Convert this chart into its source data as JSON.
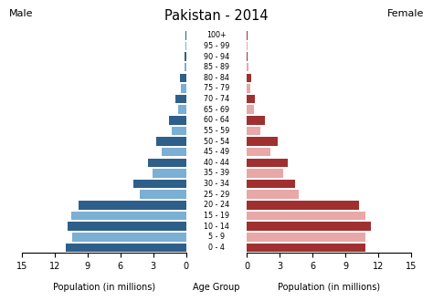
{
  "title": "Pakistan - 2014",
  "age_groups": [
    "0 - 4",
    "5 - 9",
    "10 - 14",
    "15 - 19",
    "20 - 24",
    "25 - 29",
    "30 - 34",
    "35 - 39",
    "40 - 44",
    "45 - 49",
    "50 - 54",
    "55 - 59",
    "60 - 64",
    "65 - 69",
    "70 - 74",
    "75 - 79",
    "80 - 84",
    "85 - 89",
    "90 - 94",
    "95 - 99",
    "100+"
  ],
  "male_values": [
    11.0,
    10.4,
    10.8,
    10.5,
    9.8,
    4.2,
    4.8,
    3.1,
    3.5,
    2.2,
    2.75,
    1.3,
    1.55,
    0.7,
    0.95,
    0.45,
    0.55,
    0.18,
    0.12,
    0.08,
    0.05
  ],
  "female_values": [
    10.8,
    10.8,
    11.3,
    10.8,
    10.2,
    4.7,
    4.4,
    3.3,
    3.75,
    2.15,
    2.85,
    1.25,
    1.65,
    0.65,
    0.75,
    0.35,
    0.4,
    0.15,
    0.1,
    0.05,
    0.03
  ],
  "male_color_dark": "#2E5F8A",
  "male_color_light": "#7BAFD4",
  "female_color_dark": "#A03030",
  "female_color_light": "#E8A8A8",
  "xlabel_left": "Population (in millions)",
  "xlabel_center": "Age Group",
  "xlabel_right": "Population (in millions)",
  "label_male": "Male",
  "label_female": "Female",
  "xlim": 15,
  "background_color": "#ffffff"
}
